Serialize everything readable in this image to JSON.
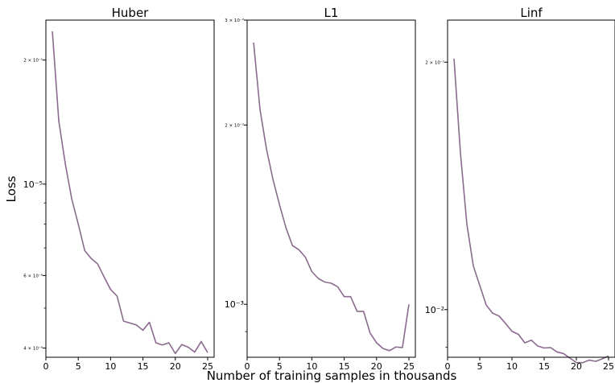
{
  "figure": {
    "ylabel": "Loss",
    "xlabel": "Number of training samples in thousands"
  },
  "chart_data": [
    {
      "type": "line",
      "title": "Huber",
      "yscale": "log",
      "xlim": [
        0,
        26
      ],
      "ylim": [
        3.8e-06,
        2.5e-05
      ],
      "xticks": [
        0,
        5,
        10,
        15,
        20,
        25
      ],
      "xtick_labels": [
        "0",
        "5",
        "10",
        "15",
        "20",
        "25"
      ],
      "yticks": [
        {
          "value": 2e-05,
          "label": "2 × 10⁻⁵",
          "size": "small"
        },
        {
          "value": 1e-05,
          "label": "10⁻⁵",
          "size": "large"
        },
        {
          "value": 6e-06,
          "label": "6 × 10⁻⁶",
          "size": "small"
        },
        {
          "value": 4e-06,
          "label": "4 × 10⁻⁶",
          "size": "small"
        }
      ],
      "minor_yticks": [
        3e-06,
        5e-06,
        7e-06,
        8e-06,
        9e-06
      ],
      "grid": false,
      "line_color": "#8a6a8e",
      "x": [
        1,
        2,
        3,
        4,
        5,
        6,
        7,
        8,
        9,
        10,
        11,
        12,
        13,
        14,
        15,
        16,
        17,
        18,
        19,
        20,
        21,
        22,
        23,
        24,
        25
      ],
      "y": [
        2.35e-05,
        1.42e-05,
        1.12e-05,
        9.2e-06,
        8e-06,
        6.9e-06,
        6.6e-06,
        6.4e-06,
        5.95e-06,
        5.55e-06,
        5.35e-06,
        4.65e-06,
        4.6e-06,
        4.55e-06,
        4.42e-06,
        4.62e-06,
        4.12e-06,
        4.07e-06,
        4.12e-06,
        3.88e-06,
        4.08e-06,
        4.02e-06,
        3.91e-06,
        4.15e-06,
        3.9e-06
      ]
    },
    {
      "type": "line",
      "title": "L1",
      "yscale": "log",
      "xlim": [
        0,
        26
      ],
      "ylim": [
        0.000815,
        0.003
      ],
      "xticks": [
        0,
        5,
        10,
        15,
        20,
        25
      ],
      "xtick_labels": [
        "0",
        "5",
        "10",
        "15",
        "20",
        "25"
      ],
      "yticks": [
        {
          "value": 0.003,
          "label": "3 × 10⁻³",
          "size": "small"
        },
        {
          "value": 0.002,
          "label": "2 × 10⁻³",
          "size": "small"
        },
        {
          "value": 0.001,
          "label": "10⁻³",
          "size": "large"
        }
      ],
      "minor_yticks": [
        0.0009
      ],
      "grid": false,
      "line_color": "#8a6a8e",
      "x": [
        1,
        2,
        3,
        4,
        5,
        6,
        7,
        8,
        9,
        10,
        11,
        12,
        13,
        14,
        15,
        16,
        17,
        18,
        19,
        20,
        21,
        22,
        23,
        24,
        25
      ],
      "y": [
        0.00275,
        0.00212,
        0.00182,
        0.00162,
        0.00147,
        0.001345,
        0.001255,
        0.001235,
        0.0012,
        0.001135,
        0.001105,
        0.00109,
        0.001085,
        0.00107,
        0.00103,
        0.00103,
        0.000973,
        0.000973,
        0.000895,
        0.000862,
        0.000843,
        0.000836,
        0.000848,
        0.000846,
        0.001
      ]
    },
    {
      "type": "line",
      "title": "Linf",
      "yscale": "log",
      "xlim": [
        0,
        26
      ],
      "ylim": [
        0.00875,
        0.0225
      ],
      "xticks": [
        0,
        5,
        10,
        15,
        20,
        25
      ],
      "xtick_labels": [
        "0",
        "5",
        "10",
        "15",
        "20",
        "25"
      ],
      "yticks": [
        {
          "value": 0.02,
          "label": "2 × 10⁻²",
          "size": "small"
        },
        {
          "value": 0.01,
          "label": "10⁻²",
          "size": "large"
        }
      ],
      "minor_yticks": [
        0.009
      ],
      "grid": false,
      "line_color": "#8a6a8e",
      "x": [
        1,
        2,
        3,
        4,
        5,
        6,
        7,
        8,
        9,
        10,
        11,
        12,
        13,
        14,
        15,
        16,
        17,
        18,
        19,
        20,
        21,
        22,
        23,
        24,
        25
      ],
      "y": [
        0.0202,
        0.0155,
        0.0127,
        0.0113,
        0.0107,
        0.01013,
        0.0099,
        0.00982,
        0.00962,
        0.00941,
        0.00933,
        0.00911,
        0.00918,
        0.00903,
        0.00898,
        0.00899,
        0.00888,
        0.00884,
        0.00873,
        0.00862,
        0.00862,
        0.00868,
        0.00865,
        0.00871,
        0.00878
      ]
    }
  ]
}
